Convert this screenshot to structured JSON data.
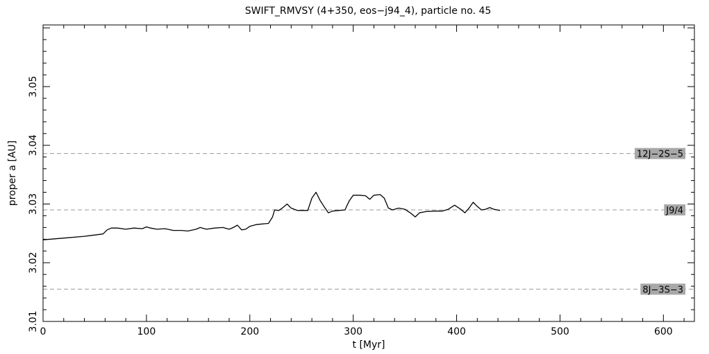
{
  "chart_data": {
    "type": "line",
    "title": "SWIFT_RMVSY (4+350, eos−j94_4), particle no. 45",
    "xlabel": "t [Myr]",
    "ylabel": "proper a [AU]",
    "xlim": [
      0,
      630
    ],
    "ylim": [
      3.01,
      3.0605
    ],
    "xticks": [
      0,
      100,
      200,
      300,
      400,
      500,
      600
    ],
    "xtick_labels": [
      "0",
      "100",
      "200",
      "300",
      "400",
      "500",
      "600"
    ],
    "yticks": [
      3.01,
      3.02,
      3.03,
      3.04,
      3.05
    ],
    "ytick_labels": [
      "3.01",
      "3.02",
      "3.03",
      "3.04",
      "3.05"
    ],
    "grid": false,
    "resonances": [
      {
        "label": "12J−2S−5",
        "a": 3.0386
      },
      {
        "label": "J9/4",
        "a": 3.029
      },
      {
        "label": "8J−3S−3",
        "a": 3.0155
      }
    ],
    "series": [
      {
        "x": [
          0,
          20,
          40,
          58,
          62,
          66,
          72,
          80,
          88,
          96,
          100,
          104,
          110,
          118,
          126,
          134,
          140,
          148,
          152,
          158,
          166,
          174,
          180,
          184,
          188,
          192,
          196,
          200,
          206,
          212,
          218,
          222,
          224,
          228,
          232,
          236,
          240,
          246,
          252,
          256,
          260,
          264,
          268,
          272,
          276,
          280,
          286,
          292,
          296,
          300,
          306,
          312,
          316,
          320,
          326,
          330,
          334,
          338,
          344,
          350,
          356,
          360,
          364,
          370,
          378,
          386,
          392,
          398,
          404,
          408,
          412,
          416,
          420,
          424,
          428,
          432,
          436,
          442
        ],
        "y": [
          3.0239,
          3.0242,
          3.0245,
          3.0249,
          3.0256,
          3.0259,
          3.0259,
          3.0257,
          3.0259,
          3.0258,
          3.0261,
          3.0259,
          3.0257,
          3.0258,
          3.0255,
          3.0255,
          3.0254,
          3.0257,
          3.026,
          3.0257,
          3.0259,
          3.026,
          3.0257,
          3.026,
          3.0264,
          3.0256,
          3.0257,
          3.0262,
          3.0265,
          3.0266,
          3.0267,
          3.0278,
          3.029,
          3.0289,
          3.0294,
          3.03,
          3.0293,
          3.0289,
          3.0289,
          3.0289,
          3.031,
          3.032,
          3.0306,
          3.0295,
          3.0285,
          3.0288,
          3.0289,
          3.029,
          3.0305,
          3.0315,
          3.0315,
          3.0314,
          3.0308,
          3.0315,
          3.0316,
          3.031,
          3.0293,
          3.029,
          3.0293,
          3.0291,
          3.0284,
          3.0278,
          3.0285,
          3.0287,
          3.0288,
          3.0288,
          3.0291,
          3.0298,
          3.0291,
          3.0285,
          3.0293,
          3.0303,
          3.0296,
          3.029,
          3.0291,
          3.0294,
          3.0291,
          3.0289
        ]
      }
    ]
  }
}
